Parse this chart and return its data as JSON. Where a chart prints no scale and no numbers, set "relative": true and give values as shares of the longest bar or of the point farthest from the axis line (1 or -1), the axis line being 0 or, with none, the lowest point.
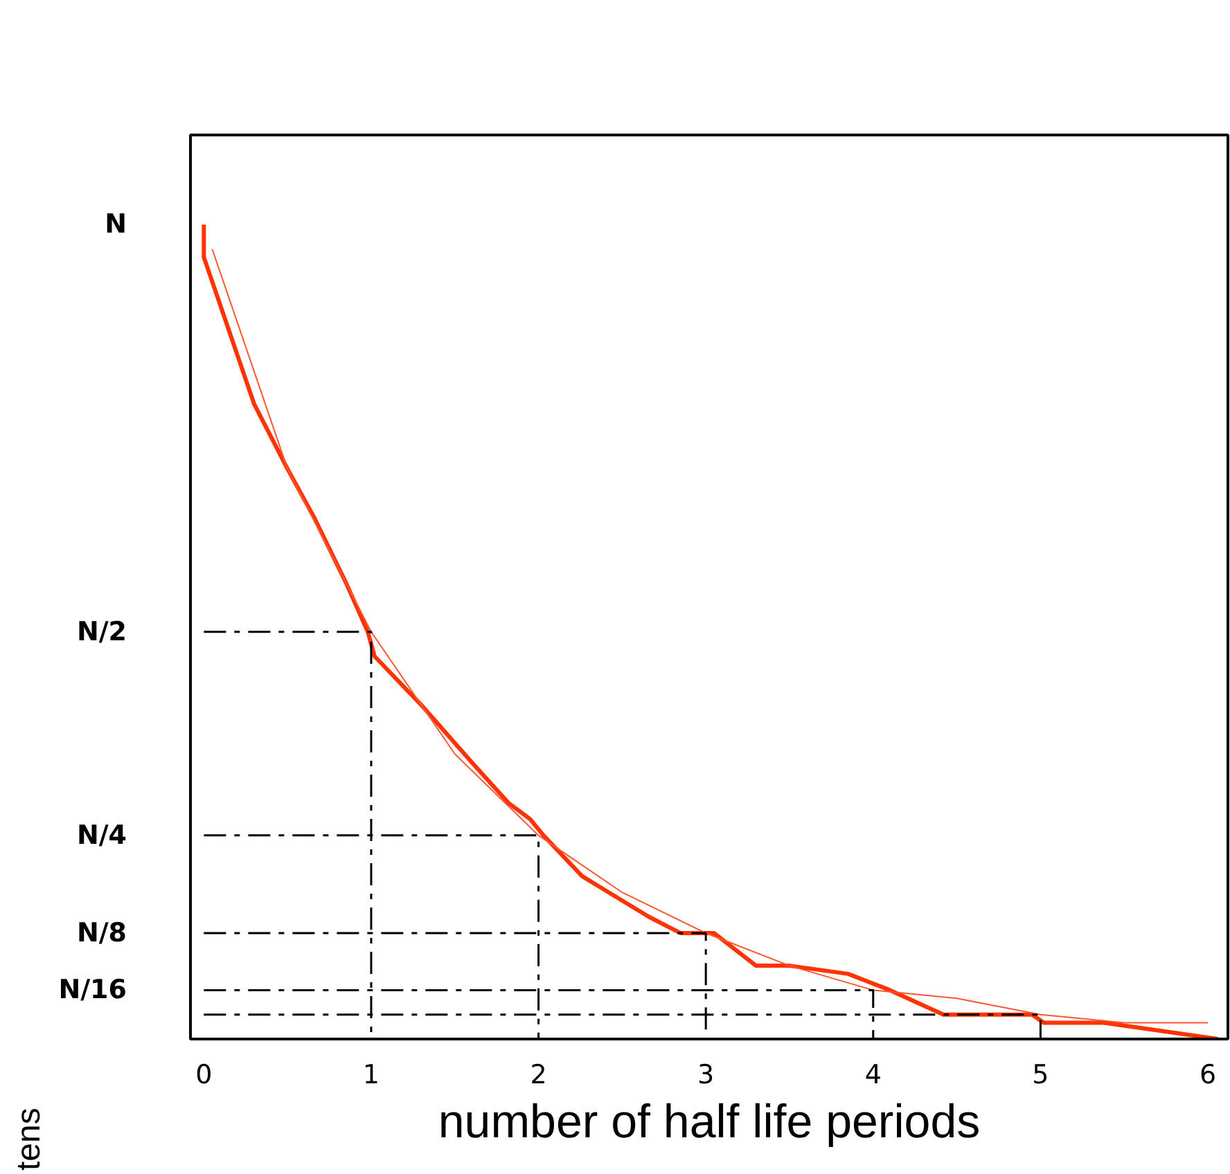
{
  "chart_data": {
    "type": "line",
    "xlabel": "number of half life periods",
    "relative": true,
    "xlim": [
      -0.08,
      6.12
    ],
    "xticks": [
      0,
      1,
      2,
      3,
      4,
      5,
      6
    ],
    "grid": false,
    "marker": "none",
    "series": [
      {
        "color": "#ff3300",
        "line_style": "solid",
        "x": [
          0.0,
          0.0,
          0.3,
          0.5,
          0.66,
          0.85,
          0.98,
          1.02,
          1.3,
          1.6,
          1.82,
          1.95,
          2.03,
          2.26,
          2.5,
          2.66,
          2.85,
          3.05,
          3.3,
          3.5,
          3.85,
          4.1,
          4.42,
          4.95,
          5.02,
          5.38,
          6.06
        ],
        "values": [
          1.0,
          0.96,
          0.78,
          0.7,
          0.64,
          0.56,
          0.5,
          0.47,
          0.41,
          0.34,
          0.29,
          0.27,
          0.25,
          0.2,
          0.17,
          0.15,
          0.13,
          0.13,
          0.09,
          0.09,
          0.08,
          0.06,
          0.03,
          0.03,
          0.02,
          0.02,
          0.0
        ]
      },
      {
        "color": "#ff5533",
        "line_style": "solid",
        "x": [
          0.05,
          0.5,
          1.0,
          1.5,
          2.0,
          2.5,
          3.0,
          3.5,
          4.0,
          4.5,
          5.0,
          5.5,
          6.0
        ],
        "values": [
          0.97,
          0.7,
          0.5,
          0.35,
          0.25,
          0.18,
          0.13,
          0.09,
          0.06,
          0.05,
          0.03,
          0.02,
          0.02
        ]
      },
      {
        "color": "#000000",
        "line_style": "dashed",
        "x": [
          0,
          1,
          1
        ],
        "values": [
          0.5,
          0.5,
          0
        ]
      },
      {
        "color": "#000000",
        "line_style": "dashed",
        "x": [
          0,
          2,
          2
        ],
        "values": [
          0.25,
          0.25,
          0
        ]
      },
      {
        "color": "#000000",
        "line_style": "dashed",
        "x": [
          0,
          3,
          3
        ],
        "values": [
          0.13,
          0.13,
          0
        ]
      },
      {
        "color": "#000000",
        "line_style": "dashed",
        "x": [
          0,
          4,
          4
        ],
        "values": [
          0.06,
          0.06,
          0
        ]
      },
      {
        "color": "#000000",
        "line_style": "dashed",
        "x": [
          0,
          5,
          5
        ],
        "values": [
          0.03,
          0.03,
          0
        ]
      }
    ],
    "annotations": [
      "N",
      "N/2",
      "N/4",
      "N/8",
      "N/16",
      "tens"
    ]
  }
}
